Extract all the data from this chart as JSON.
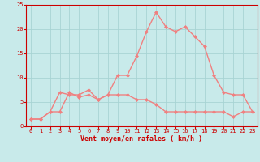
{
  "x": [
    0,
    1,
    2,
    3,
    4,
    5,
    6,
    7,
    8,
    9,
    10,
    11,
    12,
    13,
    14,
    15,
    16,
    17,
    18,
    19,
    20,
    21,
    22,
    23
  ],
  "avg_wind": [
    1.5,
    1.5,
    3.0,
    3.0,
    7.0,
    6.0,
    6.5,
    5.5,
    6.5,
    6.5,
    6.5,
    5.5,
    5.5,
    4.5,
    3.0,
    3.0,
    3.0,
    3.0,
    3.0,
    3.0,
    3.0,
    2.0,
    3.0,
    3.0
  ],
  "gust_wind": [
    1.5,
    1.5,
    3.0,
    7.0,
    6.5,
    6.5,
    7.5,
    5.5,
    6.5,
    10.5,
    10.5,
    14.5,
    19.5,
    23.5,
    20.5,
    19.5,
    20.5,
    18.5,
    16.5,
    10.5,
    7.0,
    6.5,
    6.5,
    3.0
  ],
  "ylim": [
    0,
    25
  ],
  "xlim": [
    -0.5,
    23.5
  ],
  "yticks": [
    0,
    5,
    10,
    15,
    20,
    25
  ],
  "xticks": [
    0,
    1,
    2,
    3,
    4,
    5,
    6,
    7,
    8,
    9,
    10,
    11,
    12,
    13,
    14,
    15,
    16,
    17,
    18,
    19,
    20,
    21,
    22,
    23
  ],
  "xlabel": "Vent moyen/en rafales ( km/h )",
  "line_color": "#f08080",
  "bg_color": "#c8eaea",
  "grid_color": "#a8d4d4",
  "axis_color": "#cc0000",
  "tick_color": "#cc0000",
  "label_color": "#cc0000",
  "marker": "D",
  "marker_size": 2,
  "line_width": 1.0,
  "tick_fontsize": 5,
  "label_fontsize": 6
}
